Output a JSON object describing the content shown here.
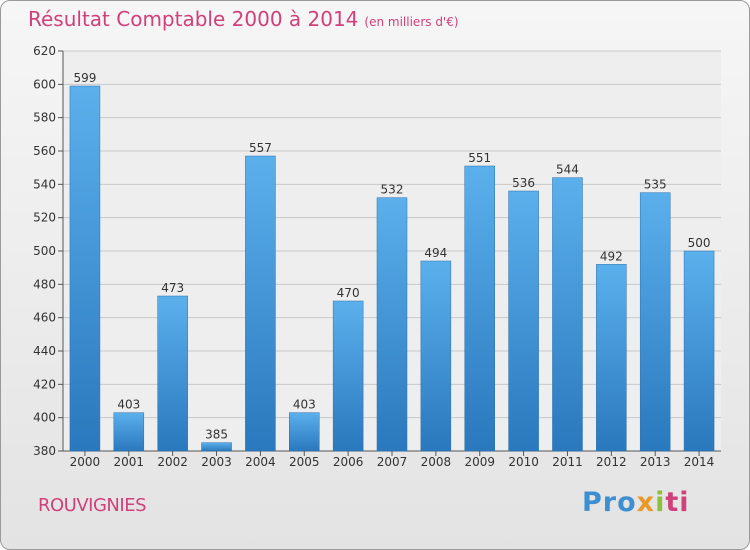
{
  "chart_data": {
    "type": "bar",
    "title": "Résultat Comptable 2000 à 2014",
    "subtitle": "(en milliers d'€)",
    "categories": [
      "2000",
      "2001",
      "2002",
      "2003",
      "2004",
      "2005",
      "2006",
      "2007",
      "2008",
      "2009",
      "2010",
      "2011",
      "2012",
      "2013",
      "2014"
    ],
    "values": [
      599,
      403,
      473,
      385,
      557,
      403,
      470,
      532,
      494,
      551,
      536,
      544,
      492,
      535,
      500
    ],
    "ylim": [
      380,
      620
    ],
    "yticks": [
      380,
      400,
      420,
      440,
      460,
      480,
      500,
      520,
      540,
      560,
      580,
      600,
      620
    ],
    "xlabel": "",
    "ylabel": "",
    "grid": true,
    "bar_color": "#3a93d8"
  },
  "commune": "ROUVIGNIES",
  "logo": {
    "text": "Proxiti",
    "parts": [
      "Pro",
      "x",
      "i",
      "ti"
    ]
  },
  "colors": {
    "accent": "#d0407a",
    "bar": "#3a93d8"
  }
}
